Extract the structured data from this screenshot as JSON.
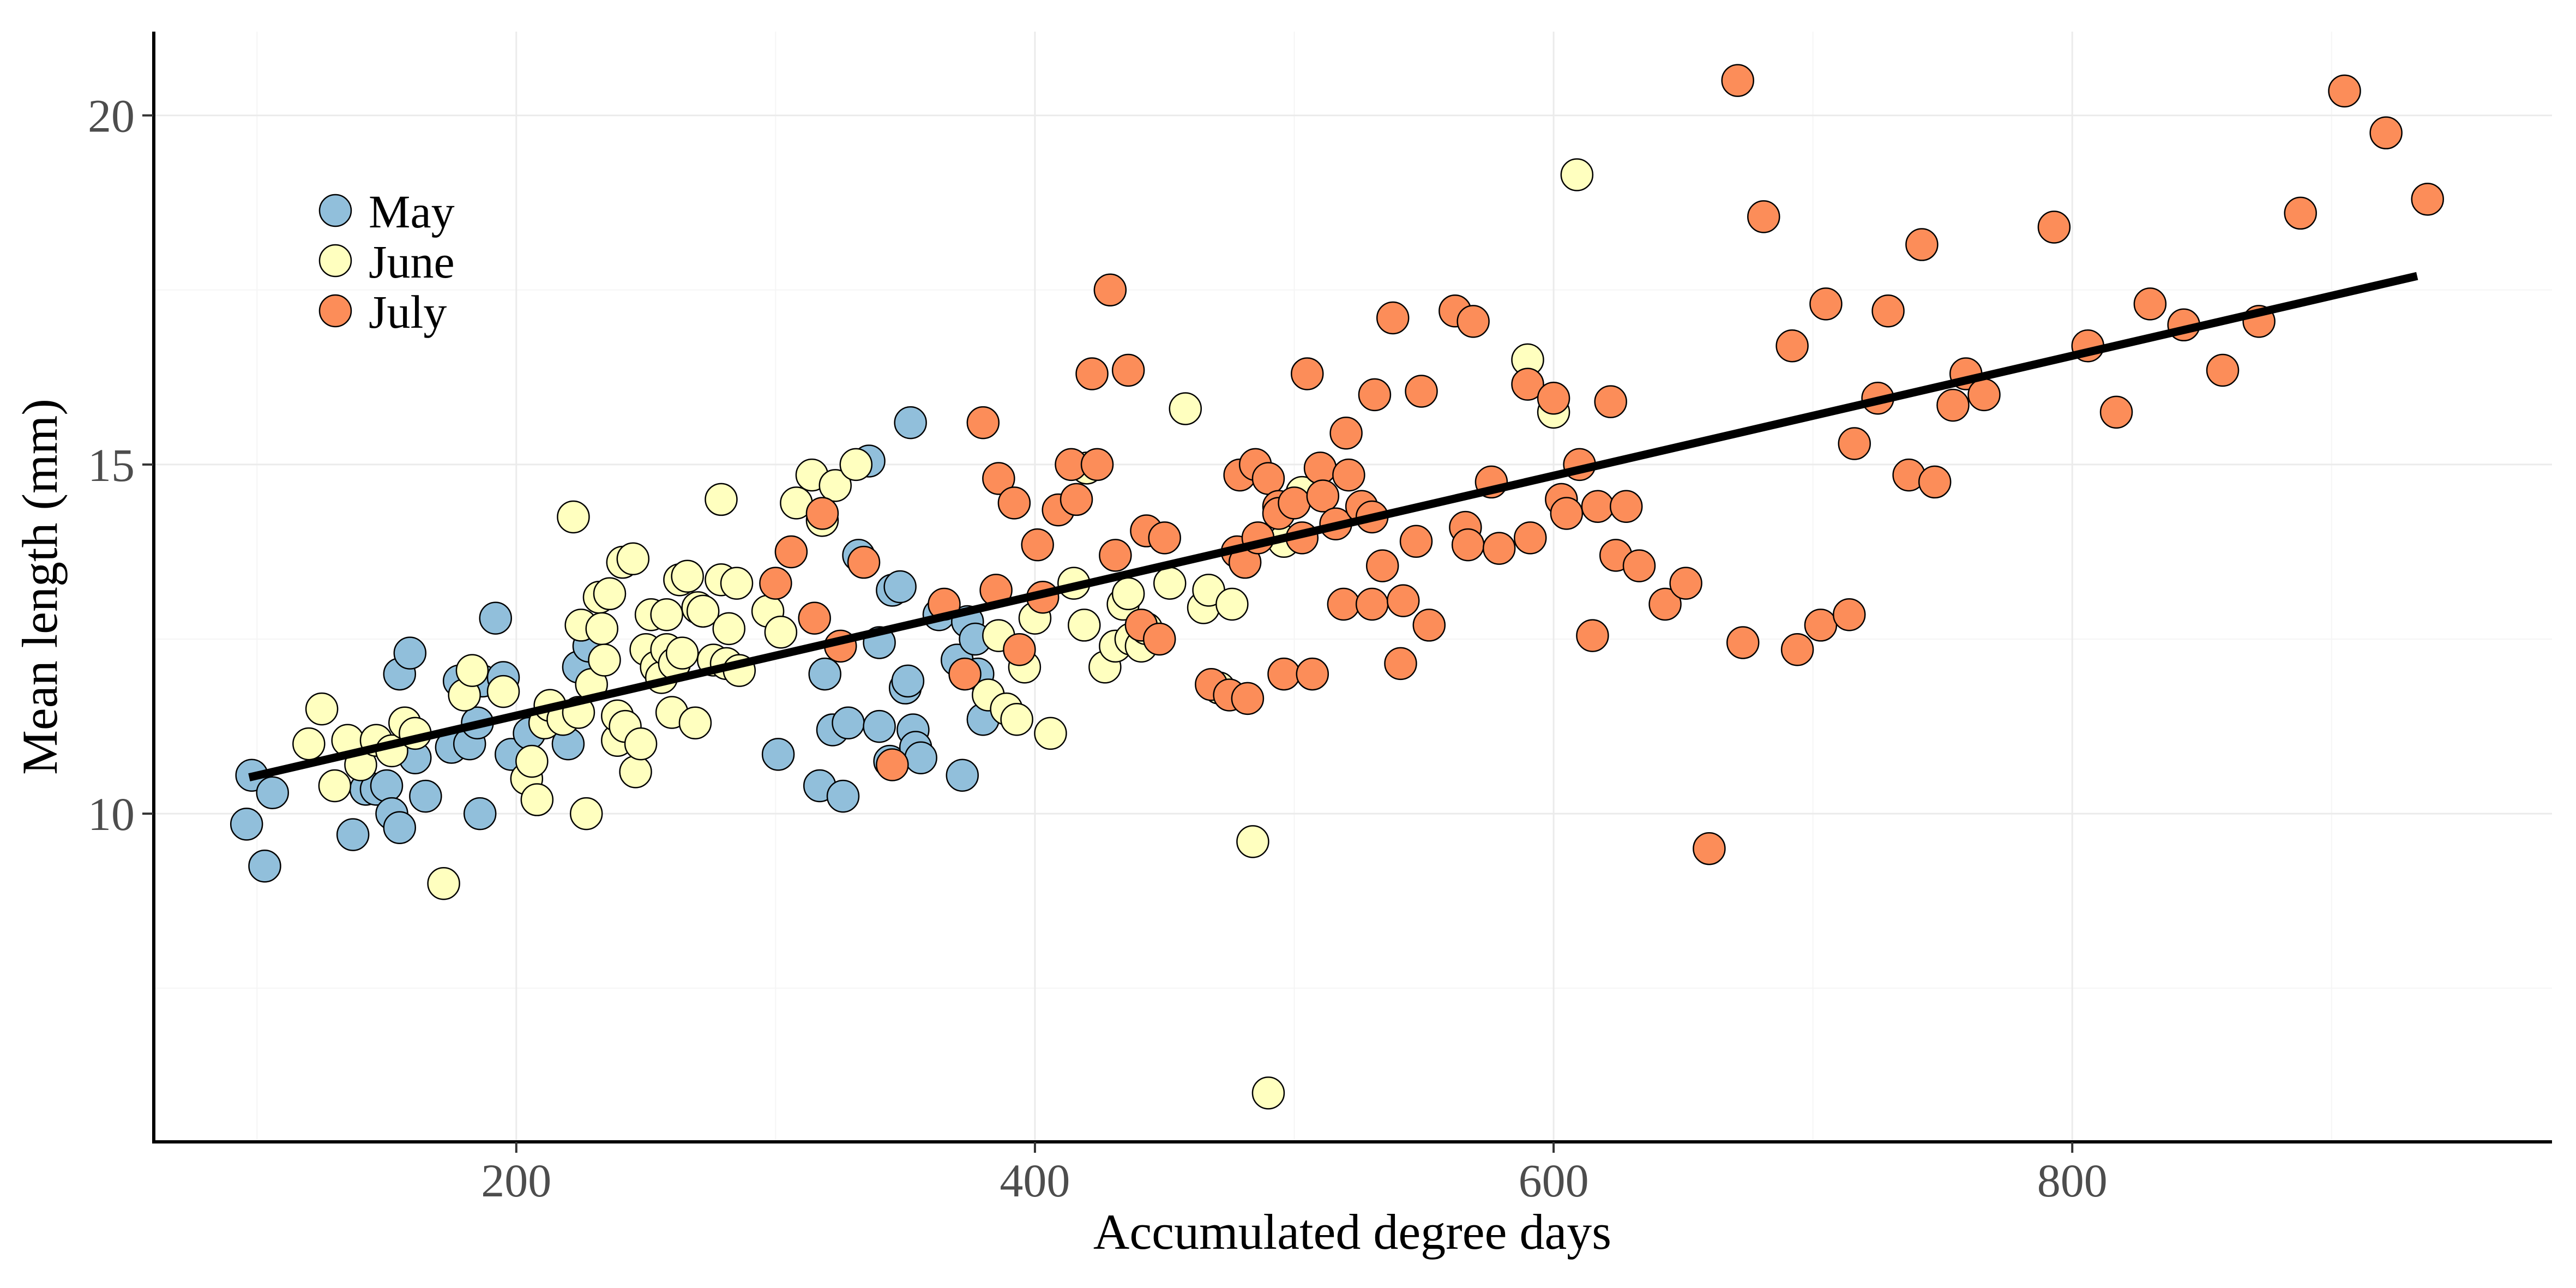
{
  "chart_data": {
    "type": "scatter",
    "xlabel": "Accumulated degree days",
    "ylabel": "Mean length (mm)",
    "xlim": [
      60,
      985
    ],
    "ylim": [
      5.3,
      21.2
    ],
    "x_ticks": [
      200,
      400,
      600,
      800
    ],
    "y_ticks": [
      10,
      15,
      20
    ],
    "grid": true,
    "legend_position": "top-left",
    "colors": {
      "May": "#91bfdb",
      "June": "#ffffbf",
      "July": "#fc8d59",
      "fit": "#000000"
    },
    "series": [
      {
        "name": "May",
        "points": [
          [
            96,
            9.85
          ],
          [
            98,
            10.55
          ],
          [
            103,
            9.25
          ],
          [
            106,
            10.3
          ],
          [
            137,
            9.7
          ],
          [
            142,
            10.35
          ],
          [
            146,
            10.35
          ],
          [
            150,
            10.4
          ],
          [
            152,
            10.0
          ],
          [
            155,
            9.8
          ],
          [
            155,
            12.0
          ],
          [
            159,
            12.3
          ],
          [
            161,
            10.8
          ],
          [
            165,
            10.25
          ],
          [
            175,
            10.95
          ],
          [
            178,
            11.9
          ],
          [
            182,
            11.0
          ],
          [
            185,
            11.3
          ],
          [
            186,
            10.0
          ],
          [
            187,
            11.9
          ],
          [
            192,
            12.8
          ],
          [
            195,
            11.95
          ],
          [
            198,
            10.85
          ],
          [
            205,
            11.15
          ],
          [
            220,
            11.0
          ],
          [
            224,
            12.1
          ],
          [
            228,
            12.4
          ],
          [
            301,
            10.85
          ],
          [
            317,
            10.4
          ],
          [
            319,
            12.0
          ],
          [
            322,
            11.2
          ],
          [
            326,
            10.25
          ],
          [
            328,
            11.3
          ],
          [
            332,
            13.7
          ],
          [
            336,
            15.05
          ],
          [
            340,
            12.45
          ],
          [
            340,
            11.25
          ],
          [
            344,
            10.75
          ],
          [
            345,
            13.2
          ],
          [
            348,
            13.25
          ],
          [
            350,
            11.8
          ],
          [
            351,
            11.9
          ],
          [
            352,
            15.6
          ],
          [
            353,
            11.2
          ],
          [
            354,
            10.95
          ],
          [
            356,
            10.8
          ],
          [
            363,
            12.85
          ],
          [
            370,
            12.2
          ],
          [
            372,
            10.55
          ],
          [
            374,
            12.75
          ],
          [
            377,
            12.5
          ],
          [
            378,
            12.0
          ],
          [
            380,
            11.35
          ]
        ]
      },
      {
        "name": "June",
        "points": [
          [
            120,
            11.0
          ],
          [
            125,
            11.5
          ],
          [
            130,
            10.4
          ],
          [
            135,
            11.05
          ],
          [
            140,
            10.7
          ],
          [
            146,
            11.05
          ],
          [
            152,
            10.9
          ],
          [
            157,
            11.3
          ],
          [
            161,
            11.15
          ],
          [
            172,
            9.0
          ],
          [
            180,
            11.7
          ],
          [
            183,
            12.05
          ],
          [
            195,
            11.75
          ],
          [
            204,
            10.5
          ],
          [
            206,
            10.75
          ],
          [
            208,
            10.2
          ],
          [
            211,
            11.3
          ],
          [
            213,
            11.55
          ],
          [
            218,
            11.35
          ],
          [
            222,
            14.25
          ],
          [
            224,
            11.45
          ],
          [
            225,
            12.7
          ],
          [
            227,
            10.0
          ],
          [
            229,
            11.85
          ],
          [
            232,
            13.1
          ],
          [
            233,
            12.65
          ],
          [
            234,
            12.2
          ],
          [
            236,
            13.15
          ],
          [
            239,
            11.05
          ],
          [
            239,
            11.4
          ],
          [
            241,
            13.6
          ],
          [
            242,
            11.25
          ],
          [
            245,
            13.65
          ],
          [
            246,
            10.6
          ],
          [
            248,
            11.0
          ],
          [
            250,
            12.35
          ],
          [
            252,
            12.85
          ],
          [
            254,
            12.1
          ],
          [
            256,
            11.95
          ],
          [
            258,
            12.35
          ],
          [
            258,
            12.85
          ],
          [
            260,
            11.45
          ],
          [
            261,
            12.15
          ],
          [
            263,
            13.35
          ],
          [
            264,
            12.3
          ],
          [
            266,
            13.4
          ],
          [
            269,
            11.3
          ],
          [
            270,
            12.95
          ],
          [
            272,
            12.9
          ],
          [
            276,
            12.2
          ],
          [
            279,
            13.35
          ],
          [
            279,
            14.5
          ],
          [
            281,
            12.15
          ],
          [
            282,
            12.65
          ],
          [
            285,
            13.3
          ],
          [
            286,
            12.05
          ],
          [
            297,
            12.9
          ],
          [
            302,
            12.6
          ],
          [
            308,
            14.45
          ],
          [
            314,
            14.85
          ],
          [
            318,
            14.2
          ],
          [
            323,
            14.7
          ],
          [
            331,
            15.0
          ],
          [
            382,
            11.7
          ],
          [
            386,
            12.55
          ],
          [
            389,
            11.5
          ],
          [
            393,
            11.35
          ],
          [
            396,
            12.1
          ],
          [
            400,
            12.8
          ],
          [
            406,
            11.15
          ],
          [
            415,
            13.3
          ],
          [
            419,
            12.7
          ],
          [
            420,
            14.95
          ],
          [
            427,
            12.1
          ],
          [
            431,
            12.4
          ],
          [
            434,
            13.0
          ],
          [
            436,
            13.15
          ],
          [
            437,
            12.5
          ],
          [
            441,
            12.4
          ],
          [
            443,
            12.65
          ],
          [
            452,
            13.3
          ],
          [
            458,
            15.8
          ],
          [
            465,
            12.95
          ],
          [
            467,
            13.2
          ],
          [
            471,
            11.8
          ],
          [
            476,
            13.0
          ],
          [
            484,
            9.6
          ],
          [
            490,
            6.0
          ],
          [
            496,
            13.9
          ],
          [
            503,
            14.6
          ],
          [
            590,
            16.5
          ],
          [
            600,
            15.75
          ],
          [
            609,
            19.15
          ]
        ]
      },
      {
        "name": "July",
        "points": [
          [
            300,
            13.3
          ],
          [
            306,
            13.75
          ],
          [
            315,
            12.8
          ],
          [
            318,
            14.3
          ],
          [
            325,
            12.4
          ],
          [
            334,
            13.6
          ],
          [
            345,
            10.7
          ],
          [
            365,
            13.0
          ],
          [
            373,
            12.0
          ],
          [
            380,
            15.6
          ],
          [
            385,
            13.2
          ],
          [
            386,
            14.8
          ],
          [
            392,
            14.45
          ],
          [
            394,
            12.35
          ],
          [
            401,
            13.85
          ],
          [
            403,
            13.1
          ],
          [
            409,
            14.35
          ],
          [
            414,
            15.0
          ],
          [
            416,
            14.5
          ],
          [
            422,
            16.3
          ],
          [
            424,
            15.0
          ],
          [
            429,
            17.5
          ],
          [
            431,
            13.7
          ],
          [
            436,
            16.35
          ],
          [
            441,
            12.7
          ],
          [
            443,
            14.05
          ],
          [
            448,
            12.5
          ],
          [
            450,
            13.95
          ],
          [
            468,
            11.85
          ],
          [
            475,
            11.7
          ],
          [
            478,
            13.75
          ],
          [
            479,
            14.85
          ],
          [
            481,
            13.6
          ],
          [
            482,
            11.65
          ],
          [
            485,
            15.0
          ],
          [
            486,
            13.95
          ],
          [
            490,
            14.8
          ],
          [
            494,
            14.4
          ],
          [
            494,
            14.3
          ],
          [
            496,
            12.0
          ],
          [
            500,
            14.45
          ],
          [
            503,
            13.95
          ],
          [
            505,
            16.3
          ],
          [
            507,
            12.0
          ],
          [
            510,
            14.95
          ],
          [
            511,
            14.55
          ],
          [
            516,
            14.15
          ],
          [
            519,
            13.0
          ],
          [
            520,
            15.45
          ],
          [
            521,
            14.85
          ],
          [
            526,
            14.4
          ],
          [
            530,
            13.0
          ],
          [
            530,
            14.25
          ],
          [
            531,
            16.0
          ],
          [
            534,
            13.55
          ],
          [
            538,
            17.1
          ],
          [
            541,
            12.15
          ],
          [
            542,
            13.05
          ],
          [
            547,
            13.9
          ],
          [
            549,
            16.05
          ],
          [
            552,
            12.7
          ],
          [
            562,
            17.2
          ],
          [
            566,
            14.1
          ],
          [
            567,
            13.85
          ],
          [
            569,
            17.05
          ],
          [
            576,
            14.75
          ],
          [
            579,
            13.8
          ],
          [
            590,
            16.15
          ],
          [
            591,
            13.95
          ],
          [
            600,
            15.95
          ],
          [
            603,
            14.5
          ],
          [
            605,
            14.3
          ],
          [
            610,
            15.0
          ],
          [
            615,
            12.55
          ],
          [
            617,
            14.4
          ],
          [
            622,
            15.9
          ],
          [
            624,
            13.7
          ],
          [
            628,
            14.4
          ],
          [
            633,
            13.55
          ],
          [
            643,
            13.0
          ],
          [
            651,
            13.3
          ],
          [
            660,
            9.5
          ],
          [
            671,
            20.5
          ],
          [
            673,
            12.45
          ],
          [
            681,
            18.55
          ],
          [
            692,
            16.7
          ],
          [
            694,
            12.35
          ],
          [
            703,
            12.7
          ],
          [
            705,
            17.3
          ],
          [
            714,
            12.85
          ],
          [
            716,
            15.3
          ],
          [
            725,
            15.95
          ],
          [
            729,
            17.2
          ],
          [
            737,
            14.85
          ],
          [
            742,
            18.15
          ],
          [
            747,
            14.75
          ],
          [
            754,
            15.85
          ],
          [
            759,
            16.3
          ],
          [
            766,
            16.0
          ],
          [
            793,
            18.4
          ],
          [
            806,
            16.7
          ],
          [
            817,
            15.75
          ],
          [
            830,
            17.3
          ],
          [
            843,
            17.0
          ],
          [
            858,
            16.35
          ],
          [
            872,
            17.05
          ],
          [
            888,
            18.6
          ],
          [
            905,
            20.35
          ],
          [
            921,
            19.75
          ],
          [
            937,
            18.8
          ]
        ]
      }
    ],
    "fit_line": {
      "x": [
        97,
        933
      ],
      "y": [
        10.52,
        17.7
      ]
    }
  },
  "legend": {
    "items": [
      {
        "label": "May",
        "color": "#91bfdb"
      },
      {
        "label": "June",
        "color": "#ffffbf"
      },
      {
        "label": "July",
        "color": "#fc8d59"
      }
    ]
  }
}
